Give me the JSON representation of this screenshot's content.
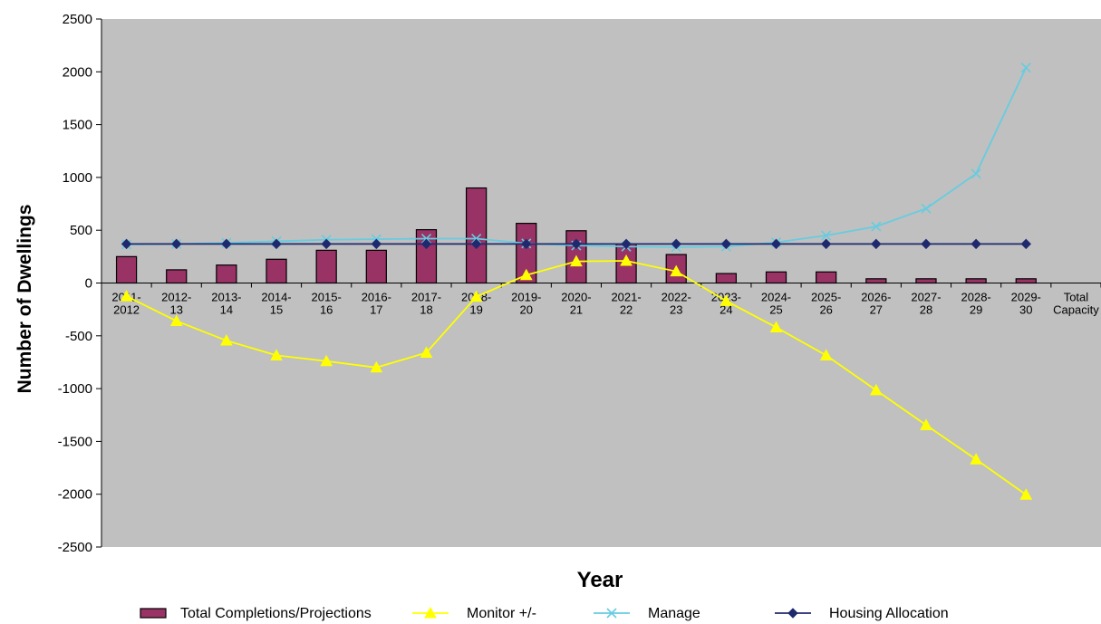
{
  "chart_data": {
    "type": "bar",
    "xlabel": "Year",
    "ylabel": "Number of Dwellings",
    "ylim": [
      -2500,
      2500
    ],
    "ytick_step": 500,
    "categories": [
      [
        "2011-",
        "2012"
      ],
      [
        "2012-",
        "13"
      ],
      [
        "2013-",
        "14"
      ],
      [
        "2014-",
        "15"
      ],
      [
        "2015-",
        "16"
      ],
      [
        "2016-",
        "17"
      ],
      [
        "2017-",
        "18"
      ],
      [
        "2018-",
        "19"
      ],
      [
        "2019-",
        "20"
      ],
      [
        "2020-",
        "21"
      ],
      [
        "2021-",
        "22"
      ],
      [
        "2022-",
        "23"
      ],
      [
        "2023-",
        "24"
      ],
      [
        "2024-",
        "25"
      ],
      [
        "2025-",
        "26"
      ],
      [
        "2026-",
        "27"
      ],
      [
        "2027-",
        "28"
      ],
      [
        "2028-",
        "29"
      ],
      [
        "2029-",
        "30"
      ],
      [
        "Total",
        "Capacity"
      ]
    ],
    "series": [
      {
        "name": "Total Completions/Projections",
        "kind": "bar",
        "color": "#993366",
        "values": [
          250,
          125,
          170,
          225,
          310,
          310,
          505,
          900,
          565,
          495,
          370,
          270,
          90,
          105,
          105,
          40,
          40,
          40,
          40,
          null
        ]
      },
      {
        "name": "Monitor +/-",
        "kind": "line",
        "marker": "triangle",
        "color": "#FFFF00",
        "values": [
          -125,
          -360,
          -545,
          -685,
          -740,
          -800,
          -660,
          -130,
          75,
          205,
          210,
          110,
          -170,
          -420,
          -685,
          -1015,
          -1345,
          -1670,
          -2005,
          null
        ]
      },
      {
        "name": "Manage",
        "kind": "line",
        "marker": "x",
        "color": "#66CCE0",
        "values": [
          365,
          370,
          380,
          395,
          410,
          415,
          420,
          420,
          375,
          355,
          345,
          340,
          345,
          385,
          450,
          535,
          705,
          1035,
          2040,
          null
        ]
      },
      {
        "name": "Housing Allocation",
        "kind": "line",
        "marker": "diamond",
        "color": "#1F2A6E",
        "values": [
          370,
          370,
          370,
          370,
          370,
          370,
          370,
          370,
          370,
          370,
          370,
          370,
          370,
          370,
          370,
          370,
          370,
          370,
          370,
          null
        ]
      }
    ],
    "grid": false,
    "legend": "bottom",
    "plot_background": "#C0C0C0"
  }
}
